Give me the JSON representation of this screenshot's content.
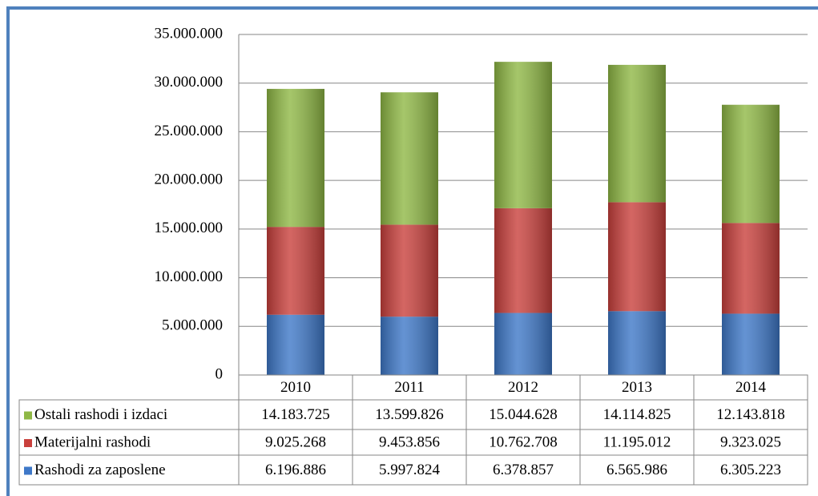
{
  "chart_data": {
    "type": "stacked_bar",
    "categories": [
      "2010",
      "2011",
      "2012",
      "2013",
      "2014"
    ],
    "series": [
      {
        "name": "Ostali rashodi i izdaci",
        "color": "#8fb845",
        "values": [
          14183725,
          13599826,
          15044628,
          14114825,
          12143818
        ],
        "value_labels": [
          "14.183.725",
          "13.599.826",
          "15.044.628",
          "14.114.825",
          "12.143.818"
        ]
      },
      {
        "name": "Materijalni rashodi",
        "color": "#c9403c",
        "values": [
          9025268,
          9453856,
          10762708,
          11195012,
          9323025
        ],
        "value_labels": [
          "9.025.268",
          "9.453.856",
          "10.762.708",
          "11.195.012",
          "9.323.025"
        ]
      },
      {
        "name": "Rashodi za zaposlene",
        "color": "#3e78c8",
        "values": [
          6196886,
          5997824,
          6378857,
          6565986,
          6305223
        ],
        "value_labels": [
          "6.196.886",
          "5.997.824",
          "6.378.857",
          "6.565.986",
          "6.305.223"
        ]
      }
    ],
    "ylim": [
      0,
      35000000
    ],
    "yticks": [
      0,
      {
        "value": 5000000,
        "label": "5.000.000"
      },
      {
        "value": 10000000,
        "label": "10.000.000"
      },
      {
        "value": 15000000,
        "label": "15.000.000"
      },
      {
        "value": 20000000,
        "label": "20.000.000"
      },
      {
        "value": 25000000,
        "label": "25.000.000"
      },
      {
        "value": 30000000,
        "label": "30.000.000"
      },
      {
        "value": 35000000,
        "label": "35.000.000"
      }
    ],
    "grid": true
  }
}
